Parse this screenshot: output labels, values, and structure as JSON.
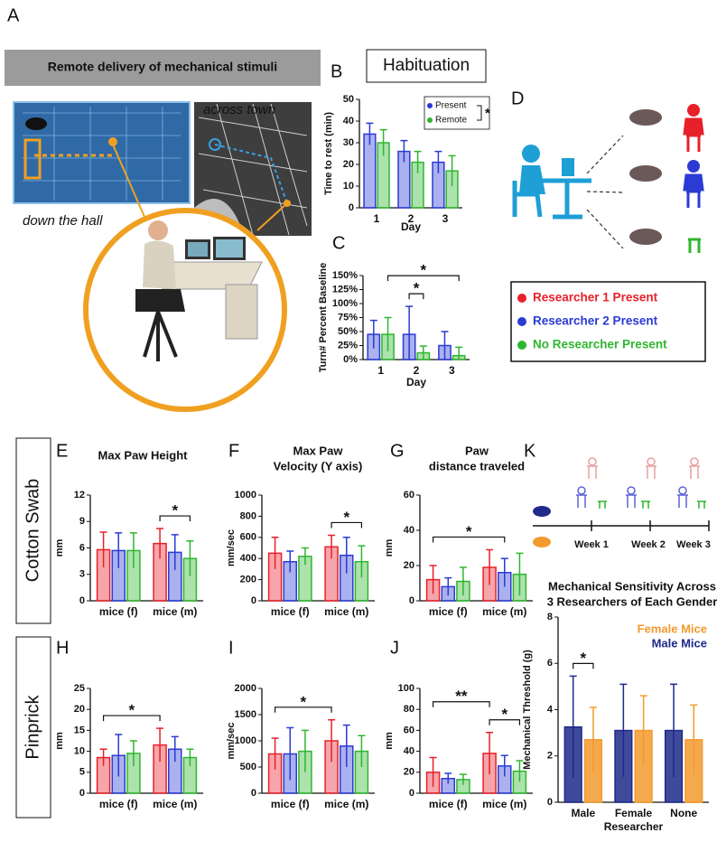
{
  "panel_a": {
    "letter": "A",
    "banner": "Remote delivery of mechanical stimuli",
    "label_far": "across town",
    "label_near": "down the hall"
  },
  "panel_d": {
    "letter": "D",
    "legend": [
      {
        "label": "Researcher 1 Present",
        "color": "#e8202a"
      },
      {
        "label": "Researcher 2 Present",
        "color": "#2b3bd4"
      },
      {
        "label": "No Researcher Present",
        "color": "#2fb62f"
      }
    ]
  },
  "row_labels": [
    "Cotton Swab",
    "Pinprick"
  ],
  "panel_k_timeline": {
    "weeks": [
      "Week 1",
      "Week 2",
      "Week 3"
    ]
  },
  "chart_data": [
    {
      "type": "bar",
      "letter": "B",
      "title": "Habituation",
      "xlabel": "Day",
      "ylabel": "Time  to rest (min)",
      "categories": [
        "1",
        "2",
        "3"
      ],
      "series": [
        {
          "name": "Present",
          "color": "#2b3bd4",
          "values": [
            34,
            26,
            21
          ],
          "errors": [
            5,
            5,
            5
          ]
        },
        {
          "name": "Remote",
          "color": "#2fb62f",
          "values": [
            30,
            21,
            17
          ],
          "errors": [
            6,
            5,
            7
          ]
        }
      ],
      "ylim": [
        0,
        50
      ],
      "yticks": [
        0,
        10,
        20,
        30,
        40,
        50
      ],
      "legend": "top-right",
      "legend_annotation": "*"
    },
    {
      "type": "bar",
      "letter": "C",
      "xlabel": "Day",
      "ylabel": "Turn# Percent Baseline",
      "categories": [
        "1",
        "2",
        "3"
      ],
      "series": [
        {
          "color": "#2b3bd4",
          "values": [
            45,
            45,
            25
          ],
          "errors": [
            25,
            50,
            25
          ]
        },
        {
          "color": "#2fb62f",
          "values": [
            45,
            12,
            7
          ],
          "errors": [
            30,
            12,
            15
          ]
        }
      ],
      "ylim": [
        0,
        150
      ],
      "yticks": [
        {
          "value": 0,
          "label": "0%"
        },
        {
          "value": 25,
          "label": "25%"
        },
        {
          "value": 50,
          "label": "50%"
        },
        {
          "value": 75,
          "label": "75%"
        },
        {
          "value": 100,
          "label": "100%"
        },
        {
          "value": 125,
          "label": "125%"
        },
        {
          "value": 150,
          "label": "150%"
        }
      ],
      "annotations": [
        {
          "text": "*",
          "from": [
            1,
            0
          ],
          "to": [
            1,
            1
          ]
        },
        {
          "text": "*",
          "from": [
            0,
            1
          ],
          "to": [
            2,
            1
          ]
        }
      ]
    },
    {
      "type": "bar",
      "letter": "E",
      "title": "Max Paw Height",
      "ylabel": "mm",
      "categories": [
        "mice (f)",
        "mice (m)"
      ],
      "series": [
        {
          "color": "#e8202a",
          "values": [
            5.8,
            6.5
          ],
          "errors": [
            2,
            1.7
          ]
        },
        {
          "color": "#2b3bd4",
          "values": [
            5.7,
            5.5
          ],
          "errors": [
            2,
            2
          ]
        },
        {
          "color": "#2fb62f",
          "values": [
            5.7,
            4.8
          ],
          "errors": [
            2,
            2
          ]
        }
      ],
      "ylim": [
        0,
        12
      ],
      "yticks": [
        0,
        3,
        6,
        9,
        12
      ],
      "annotations": [
        {
          "text": "*",
          "from": [
            1,
            0
          ],
          "to": [
            1,
            2
          ]
        }
      ]
    },
    {
      "type": "bar",
      "letter": "F",
      "title": [
        "Max Paw",
        "Velocity (Y axis)"
      ],
      "ylabel": "mm/sec",
      "categories": [
        "mice (f)",
        "mice (m)"
      ],
      "series": [
        {
          "color": "#e8202a",
          "values": [
            450,
            510
          ],
          "errors": [
            150,
            110
          ]
        },
        {
          "color": "#2b3bd4",
          "values": [
            370,
            430
          ],
          "errors": [
            100,
            170
          ]
        },
        {
          "color": "#2fb62f",
          "values": [
            420,
            370
          ],
          "errors": [
            80,
            150
          ]
        }
      ],
      "ylim": [
        0,
        1000
      ],
      "yticks": [
        0,
        200,
        400,
        600,
        800,
        1000
      ],
      "annotations": [
        {
          "text": "*",
          "from": [
            1,
            0
          ],
          "to": [
            1,
            2
          ]
        }
      ]
    },
    {
      "type": "bar",
      "letter": "G",
      "title": [
        "Paw",
        "distance traveled"
      ],
      "ylabel": "mm",
      "categories": [
        "mice (f)",
        "mice (m)"
      ],
      "series": [
        {
          "color": "#e8202a",
          "values": [
            12,
            19
          ],
          "errors": [
            8,
            10
          ]
        },
        {
          "color": "#2b3bd4",
          "values": [
            8,
            16
          ],
          "errors": [
            5,
            8
          ]
        },
        {
          "color": "#2fb62f",
          "values": [
            11,
            15
          ],
          "errors": [
            8,
            12
          ]
        }
      ],
      "ylim": [
        0,
        60
      ],
      "yticks": [
        0,
        20,
        40,
        60
      ],
      "annotations": [
        {
          "text": "*",
          "from": [
            0,
            0
          ],
          "to": [
            1,
            1
          ]
        }
      ]
    },
    {
      "type": "bar",
      "letter": "H",
      "ylabel": "mm",
      "categories": [
        "mice (f)",
        "mice (m)"
      ],
      "series": [
        {
          "color": "#e8202a",
          "values": [
            8.5,
            11.5
          ],
          "errors": [
            2,
            4
          ]
        },
        {
          "color": "#2b3bd4",
          "values": [
            9,
            10.5
          ],
          "errors": [
            5,
            3
          ]
        },
        {
          "color": "#2fb62f",
          "values": [
            9.5,
            8.5
          ],
          "errors": [
            3,
            2
          ]
        }
      ],
      "ylim": [
        0,
        25
      ],
      "yticks": [
        0,
        5,
        10,
        15,
        20,
        25
      ],
      "annotations": [
        {
          "text": "*",
          "from": [
            0,
            0
          ],
          "to": [
            1,
            0
          ]
        }
      ]
    },
    {
      "type": "bar",
      "letter": "I",
      "ylabel": "mm/sec",
      "categories": [
        "mice (f)",
        "mice (m)"
      ],
      "series": [
        {
          "color": "#e8202a",
          "values": [
            750,
            1000
          ],
          "errors": [
            300,
            400
          ]
        },
        {
          "color": "#2b3bd4",
          "values": [
            750,
            900
          ],
          "errors": [
            500,
            400
          ]
        },
        {
          "color": "#2fb62f",
          "values": [
            800,
            800
          ],
          "errors": [
            400,
            300
          ]
        }
      ],
      "ylim": [
        0,
        2000
      ],
      "yticks": [
        0,
        500,
        1000,
        1500,
        2000
      ],
      "annotations": [
        {
          "text": "*",
          "from": [
            0,
            0
          ],
          "to": [
            1,
            0
          ]
        }
      ]
    },
    {
      "type": "bar",
      "letter": "J",
      "ylabel": "mm",
      "categories": [
        "mice (f)",
        "mice (m)"
      ],
      "series": [
        {
          "color": "#e8202a",
          "values": [
            20,
            38
          ],
          "errors": [
            14,
            20
          ]
        },
        {
          "color": "#2b3bd4",
          "values": [
            14,
            26
          ],
          "errors": [
            5,
            10
          ]
        },
        {
          "color": "#2fb62f",
          "values": [
            13,
            21
          ],
          "errors": [
            5,
            10
          ]
        }
      ],
      "ylim": [
        0,
        100
      ],
      "yticks": [
        0,
        20,
        40,
        60,
        80,
        100
      ],
      "annotations": [
        {
          "text": "*",
          "from": [
            1,
            0
          ],
          "to": [
            1,
            2
          ]
        },
        {
          "text": "**",
          "from": [
            0,
            0
          ],
          "to": [
            1,
            0
          ]
        }
      ]
    },
    {
      "type": "bar",
      "letter": "K",
      "title": [
        "Mechanical Sensitivity Across",
        "3 Researchers of Each Gender"
      ],
      "xlabel": "Researcher",
      "ylabel": "Mechanical Threshold (g)",
      "categories": [
        "Male",
        "Female",
        "None"
      ],
      "series": [
        {
          "name": "Male Mice",
          "color": "#1f2a8a",
          "values": [
            3.25,
            3.1,
            3.1
          ],
          "errors": [
            2.2,
            2,
            2
          ]
        },
        {
          "name": "Female Mice",
          "color": "#f39a2e",
          "values": [
            2.7,
            3.1,
            2.7
          ],
          "errors": [
            1.4,
            1.5,
            1.5
          ]
        }
      ],
      "ylim": [
        0,
        8
      ],
      "yticks": [
        0,
        2,
        4,
        6,
        8
      ],
      "legend": "top-right",
      "annotations": [
        {
          "text": "*",
          "from": [
            0,
            0
          ],
          "to": [
            0,
            1
          ]
        }
      ]
    }
  ]
}
